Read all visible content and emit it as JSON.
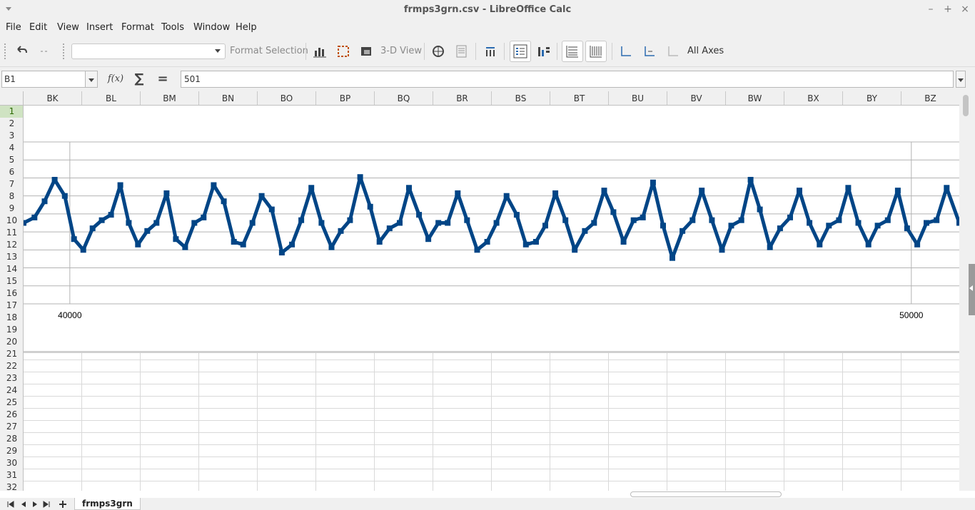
{
  "window": {
    "title": "frmps3grn.csv - LibreOffice Calc"
  },
  "menu": {
    "items": [
      "File",
      "Edit",
      "View",
      "Insert",
      "Format",
      "Tools",
      "Window",
      "Help"
    ]
  },
  "toolbar": {
    "element_select_value": "",
    "format_selection_label": "Format Selection",
    "view_3d_label": "3-D View",
    "all_axes_label": "All Axes",
    "icons": [
      "undo-icon",
      "redo-icon",
      "chart-type-icon",
      "chart-area-icon",
      "chart-wall-icon",
      "3d-view-icon",
      "data-ranges-icon",
      "data-table-icon",
      "main-title-icon",
      "legend-on-off-icon",
      "legend-icon",
      "horizontal-grids-icon",
      "vertical-grids-icon",
      "x-axis-icon",
      "y-axis-icon",
      "z-axis-icon",
      "all-axes-icon"
    ]
  },
  "formula_bar": {
    "name_box": "B1",
    "fx_label": "f(x)",
    "sum_label": "∑",
    "equals_label": "=",
    "formula": "501"
  },
  "grid": {
    "columns": [
      "BK",
      "BL",
      "BM",
      "BN",
      "BO",
      "BP",
      "BQ",
      "BR",
      "BS",
      "BT",
      "BU",
      "BV",
      "BW",
      "BX",
      "BY",
      "BZ"
    ],
    "rows": [
      "1",
      "2",
      "3",
      "4",
      "5",
      "6",
      "7",
      "8",
      "9",
      "10",
      "11",
      "12",
      "13",
      "14",
      "15",
      "16",
      "17",
      "18",
      "19",
      "20",
      "21",
      "22",
      "23",
      "24",
      "25",
      "26",
      "27",
      "28",
      "29",
      "30",
      "31",
      "32"
    ],
    "active_row": "1"
  },
  "chart_data": {
    "type": "scatter",
    "x_tick_labels": [
      "40000",
      "50000"
    ],
    "x_range": [
      39450,
      50570
    ],
    "grid": true,
    "series": [
      {
        "color": "#004586",
        "x": [
          39450,
          39580,
          39700,
          39820,
          39940,
          40050,
          40160,
          40270,
          40380,
          40490,
          40600,
          40700,
          40810,
          40920,
          41030,
          41150,
          41260,
          41370,
          41480,
          41590,
          41710,
          41830,
          41950,
          42060,
          42170,
          42280,
          42400,
          42520,
          42640,
          42750,
          42870,
          42990,
          43110,
          43220,
          43330,
          43450,
          43570,
          43680,
          43800,
          43920,
          44030,
          44150,
          44260,
          44380,
          44490,
          44610,
          44720,
          44840,
          44960,
          45070,
          45190,
          45310,
          45420,
          45540,
          45650,
          45770,
          45890,
          46000,
          46120,
          46230,
          46350,
          46460,
          46580,
          46700,
          46810,
          46930,
          47050,
          47160,
          47280,
          47400,
          47510,
          47630,
          47750,
          47860,
          47980,
          48090,
          48200,
          48320,
          48440,
          48560,
          48670,
          48790,
          48910,
          49020,
          49140,
          49250,
          49370,
          49490,
          49600,
          49720,
          49840,
          49950,
          50070,
          50180,
          50300,
          50420,
          50570
        ],
        "y": [
          500,
          502,
          508,
          516,
          510,
          494,
          490,
          498,
          501,
          503,
          514,
          500,
          492,
          497,
          500,
          511,
          494,
          491,
          500,
          502,
          514,
          508,
          493,
          492,
          500,
          510,
          505,
          489,
          492,
          501,
          513,
          500,
          491,
          497,
          501,
          517,
          506,
          493,
          498,
          500,
          513,
          503,
          494,
          500,
          500,
          511,
          501,
          490,
          493,
          500,
          510,
          503,
          492,
          493,
          499,
          511,
          501,
          490,
          497,
          500,
          512,
          504,
          493,
          501,
          502,
          515,
          499,
          487,
          497,
          501,
          512,
          501,
          490,
          499,
          501,
          516,
          505,
          491,
          498,
          502,
          512,
          500,
          492,
          499,
          501,
          513,
          500,
          492,
          499,
          501,
          512,
          498,
          492,
          500,
          501,
          513,
          500
        ]
      }
    ],
    "y_range": [
      470,
      530
    ]
  },
  "sheets": {
    "tabs": [
      "frmps3grn"
    ],
    "active": "frmps3grn"
  }
}
